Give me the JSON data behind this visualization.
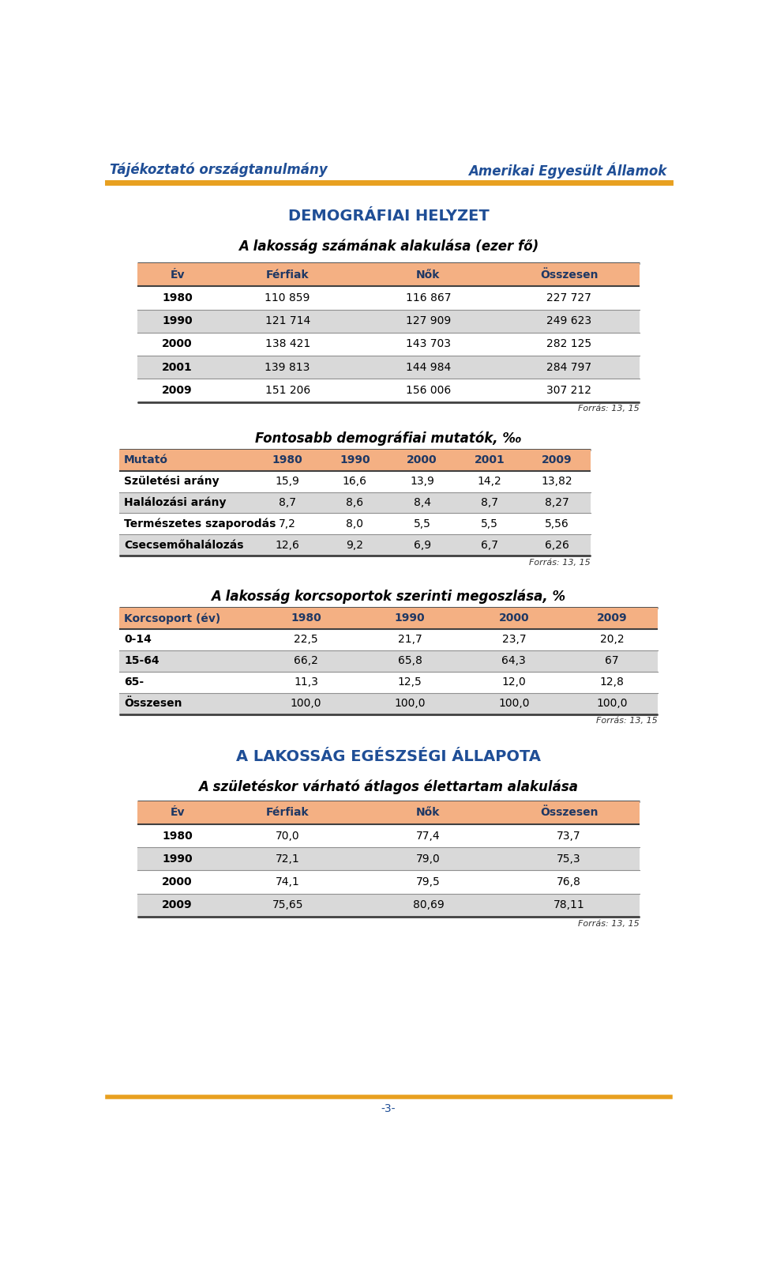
{
  "header_left": "Tájékoztató országtanulmány",
  "header_right": "Amerikai Egyesült Államok",
  "header_color": "#1F4E96",
  "header_line_color": "#E8A020",
  "section1_title": "DEMOGRÁFIAI HELYZET",
  "section1_subtitle": "A lakosság számának alakulása (ezer fő)",
  "table1_header": [
    "Év",
    "Férfiak",
    "Nők",
    "Összesen"
  ],
  "table1_header_bg": "#F4B083",
  "table1_rows": [
    [
      "1980",
      "110 859",
      "116 867",
      "227 727"
    ],
    [
      "1990",
      "121 714",
      "127 909",
      "249 623"
    ],
    [
      "2000",
      "138 421",
      "143 703",
      "282 125"
    ],
    [
      "2001",
      "139 813",
      "144 984",
      "284 797"
    ],
    [
      "2009",
      "151 206",
      "156 006",
      "307 212"
    ]
  ],
  "table1_row_colors": [
    "#FFFFFF",
    "#D9D9D9",
    "#FFFFFF",
    "#D9D9D9",
    "#FFFFFF"
  ],
  "table1_source": "Forrás: 13, 15",
  "section2_subtitle": "Fontosabb demográfiai mutatók, ‰",
  "table2_header": [
    "Mutató",
    "1980",
    "1990",
    "2000",
    "2001",
    "2009"
  ],
  "table2_header_bg": "#F4B083",
  "table2_rows": [
    [
      "Születési arány",
      "15,9",
      "16,6",
      "13,9",
      "14,2",
      "13,82"
    ],
    [
      "Halálozási arány",
      "8,7",
      "8,6",
      "8,4",
      "8,7",
      "8,27"
    ],
    [
      "Természetes szaporodás",
      "7,2",
      "8,0",
      "5,5",
      "5,5",
      "5,56"
    ],
    [
      "Csecsemőhalálozás",
      "12,6",
      "9,2",
      "6,9",
      "6,7",
      "6,26"
    ]
  ],
  "table2_row_colors": [
    "#FFFFFF",
    "#D9D9D9",
    "#FFFFFF",
    "#D9D9D9"
  ],
  "table2_source": "Forrás: 13, 15",
  "section3_subtitle": "A lakosság korcsoportok szerinti megoszlása, %",
  "table3_header": [
    "Korcsoport (év)",
    "1980",
    "1990",
    "2000",
    "2009"
  ],
  "table3_header_bg": "#F4B083",
  "table3_rows": [
    [
      "0-14",
      "22,5",
      "21,7",
      "23,7",
      "20,2"
    ],
    [
      "15-64",
      "66,2",
      "65,8",
      "64,3",
      "67"
    ],
    [
      "65-",
      "11,3",
      "12,5",
      "12,0",
      "12,8"
    ],
    [
      "Összesen",
      "100,0",
      "100,0",
      "100,0",
      "100,0"
    ]
  ],
  "table3_row_colors": [
    "#FFFFFF",
    "#D9D9D9",
    "#FFFFFF",
    "#D9D9D9"
  ],
  "table3_source": "Forrás: 13, 15",
  "section4_title": "A LAKOSSÁG EGÉSZSÉGI ÁLLAPOTA",
  "section4_subtitle": "A születéskor várható átlagos élettartam alakulása",
  "table4_header": [
    "Év",
    "Férfiak",
    "Nők",
    "Összesen"
  ],
  "table4_header_bg": "#F4B083",
  "table4_rows": [
    [
      "1980",
      "70,0",
      "77,4",
      "73,7"
    ],
    [
      "1990",
      "72,1",
      "79,0",
      "75,3"
    ],
    [
      "2000",
      "74,1",
      "79,5",
      "76,8"
    ],
    [
      "2009",
      "75,65",
      "80,69",
      "78,11"
    ]
  ],
  "table4_row_colors": [
    "#FFFFFF",
    "#D9D9D9",
    "#FFFFFF",
    "#D9D9D9"
  ],
  "table4_source": "Forrás: 13, 15",
  "footer_text": "-3-",
  "text_dark_blue": "#1F3864",
  "section_title_color": "#1F4E96",
  "bg_color": "#FFFFFF",
  "border_color_heavy": "#404040",
  "border_color_light": "#B0B0B0"
}
